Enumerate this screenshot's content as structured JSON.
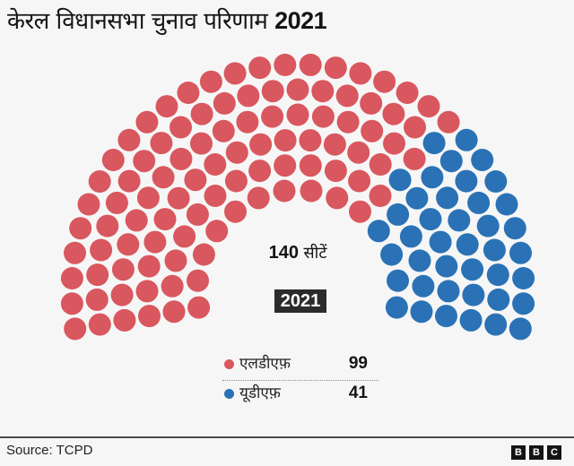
{
  "title": {
    "text": "केरल विधानसभा चुनाव परिणाम",
    "year": "2021"
  },
  "center": {
    "seats_number": "140",
    "seats_label": "सीटें",
    "year_badge": "2021"
  },
  "legend": [
    {
      "label": "एलडीएफ़",
      "value": "99",
      "color": "#d9575e"
    },
    {
      "label": "यूडीएफ़",
      "value": "41",
      "color": "#2a72b5"
    }
  ],
  "footer": {
    "source": "Source: TCPD",
    "logo": [
      "B",
      "B",
      "C"
    ]
  },
  "colors": {
    "background": "#f6f6f6",
    "ldf": "#d9575e",
    "udf": "#2a72b5"
  },
  "chart_data": {
    "type": "parliament",
    "title": "केरल विधानसभा चुनाव परिणाम 2021",
    "total_seats": 140,
    "year": "2021",
    "series": [
      {
        "name": "एलडीएफ़",
        "values": [
          99
        ],
        "color": "#d9575e"
      },
      {
        "name": "यूडीएफ़",
        "values": [
          41
        ],
        "color": "#2a72b5"
      }
    ],
    "categories": [
      "एलडीएफ़",
      "यूडीएफ़"
    ],
    "values": [
      99,
      41
    ],
    "layout": {
      "rows": 6,
      "seats_per_row": [
        14,
        18,
        22,
        25,
        29,
        32
      ],
      "center": [
        332,
        324
      ],
      "radii": [
        112,
        140,
        168,
        196,
        224,
        252
      ],
      "seat_radius": 12.5,
      "angle_below_horizontal_deg": 9.8
    },
    "source": "TCPD"
  }
}
